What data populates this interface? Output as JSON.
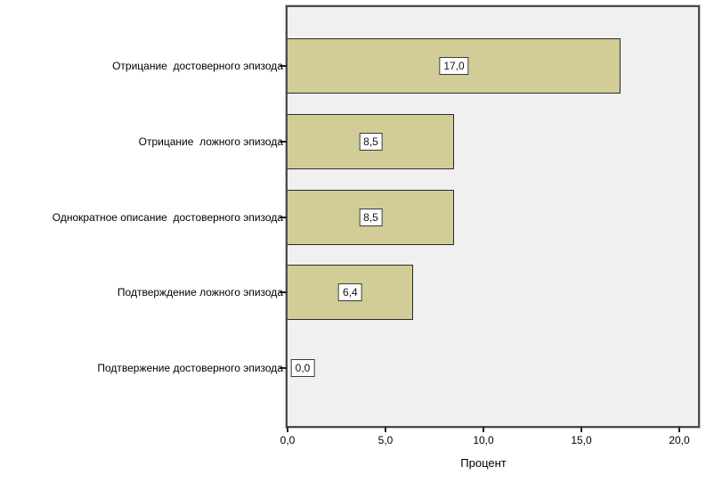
{
  "chart_data": {
    "type": "bar",
    "orientation": "horizontal",
    "xlabel": "Процент",
    "categories": [
      "Отрицание  достоверного эпизода",
      "Отрицание  ложного эпизода",
      "Однократное описание  достоверного эпизода",
      "Подтверждение ложного эпизода",
      "Подтвержение достоверного эпизода"
    ],
    "values": [
      17.0,
      8.5,
      8.5,
      6.4,
      0.0
    ],
    "value_labels": [
      "17,0",
      "8,5",
      "8,5",
      "6,4",
      "0,0"
    ],
    "x_ticks": [
      {
        "value": 0,
        "label": "0,0"
      },
      {
        "value": 5,
        "label": "5,0"
      },
      {
        "value": 10,
        "label": "10,0"
      },
      {
        "value": 15,
        "label": "15,0"
      },
      {
        "value": 20,
        "label": "20,0"
      }
    ],
    "xlim": [
      0,
      21
    ],
    "grid": false,
    "colors": {
      "bar_fill": "#d2cc96",
      "bar_border": "#2b2b2b",
      "plot_background": "#f0f0f0",
      "frame_border": "#4a4a4a",
      "value_box_background": "#ffffff",
      "value_box_border": "#3a3a3a",
      "text": "#000000"
    }
  }
}
